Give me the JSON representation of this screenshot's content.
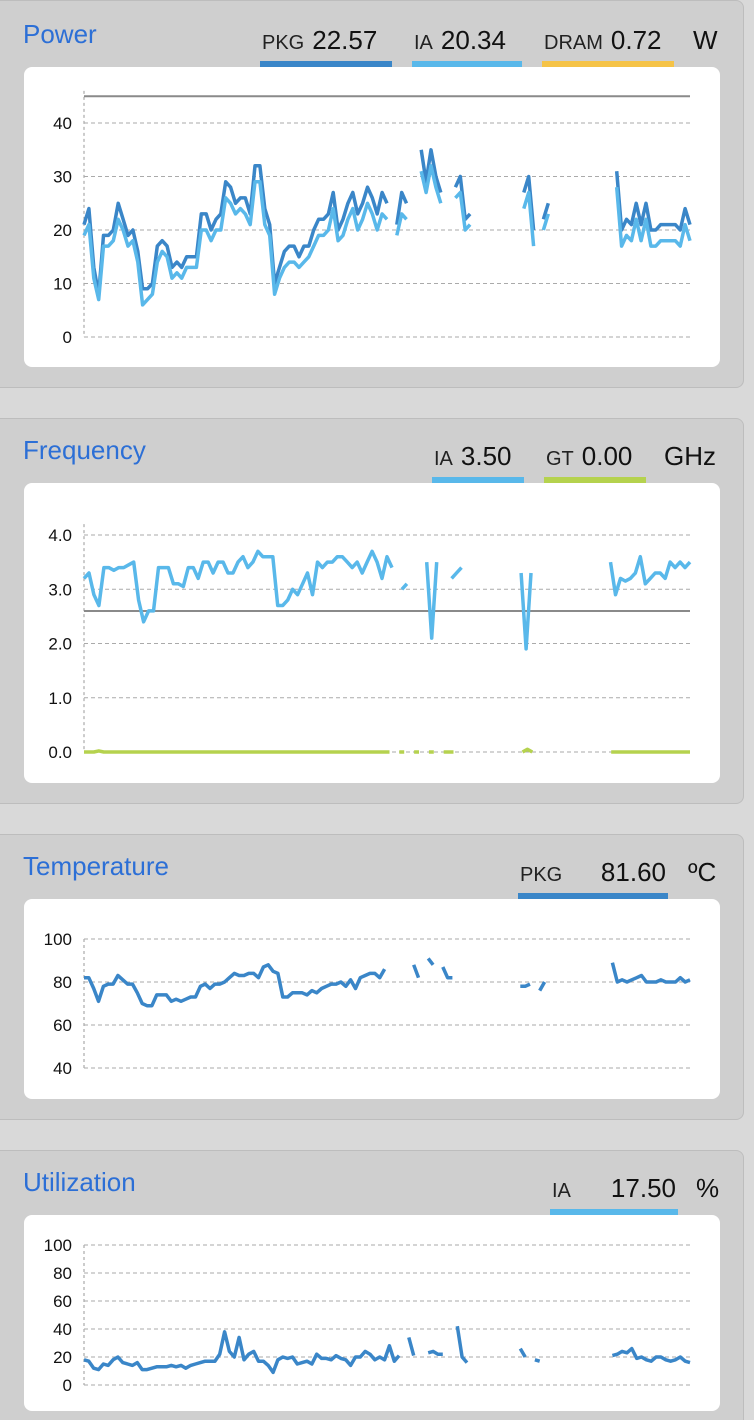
{
  "panels": {
    "power": {
      "title": "Power",
      "legend": [
        {
          "label": "PKG",
          "value": "22.57",
          "color": "#3a86c8"
        },
        {
          "label": "IA",
          "value": "20.34",
          "color": "#59b8ea"
        },
        {
          "label": "DRAM",
          "value": "0.72",
          "color": "#f5c347"
        }
      ],
      "unit": "W"
    },
    "frequency": {
      "title": "Frequency",
      "legend": [
        {
          "label": "IA",
          "value": "3.50",
          "color": "#59b8ea"
        },
        {
          "label": "GT",
          "value": "0.00",
          "color": "#b5d24e"
        }
      ],
      "unit": "GHz"
    },
    "temperature": {
      "title": "Temperature",
      "legend": [
        {
          "label": "PKG",
          "value": "81.60",
          "color": "#3a86c8"
        }
      ],
      "unit": "ºC"
    },
    "utilization": {
      "title": "Utilization",
      "legend": [
        {
          "label": "IA",
          "value": "17.50",
          "color": "#59b8ea"
        }
      ],
      "unit": "%"
    }
  },
  "chart_data": [
    {
      "type": "line",
      "id": "power",
      "yticks": [
        "0",
        "10",
        "20",
        "30",
        "40"
      ],
      "ylim": [
        0,
        46
      ],
      "reference_line": 45,
      "grid": true,
      "series": [
        {
          "name": "PKG",
          "color": "#3a86c8",
          "values": [
            21,
            24,
            13,
            8,
            19,
            19,
            20,
            25,
            22,
            19,
            20,
            16,
            9,
            9,
            10,
            17,
            18,
            17,
            13,
            14,
            13,
            15,
            15,
            15,
            23,
            23,
            20,
            22,
            23,
            29,
            28,
            25,
            26,
            26,
            23,
            32,
            32,
            24,
            21,
            10,
            13,
            16,
            17,
            17,
            15,
            17,
            17,
            20,
            22,
            22,
            23,
            27,
            20,
            22,
            25,
            27,
            23,
            25,
            28,
            26,
            23,
            27,
            25,
            null,
            21,
            27,
            25,
            null,
            null,
            35,
            29,
            35,
            30,
            27,
            null,
            null,
            28,
            30,
            22,
            23,
            null,
            null,
            null,
            null,
            null,
            null,
            null,
            null,
            null,
            null,
            27,
            30,
            20,
            null,
            22,
            25,
            null,
            null,
            null,
            null,
            null,
            null,
            null,
            null,
            null,
            null,
            null,
            null,
            null,
            31,
            20,
            22,
            21,
            25,
            21,
            25,
            20,
            20,
            21,
            21,
            21,
            21,
            20,
            24,
            21
          ]
        },
        {
          "name": "IA",
          "color": "#59b8ea",
          "values": [
            19,
            21,
            11,
            7,
            17,
            17,
            18,
            22,
            20,
            17,
            18,
            14,
            6,
            7,
            8,
            14,
            16,
            15,
            11,
            12,
            11,
            13,
            13,
            13,
            20,
            20,
            18,
            20,
            20,
            26,
            25,
            23,
            24,
            23,
            21,
            29,
            29,
            21,
            19,
            8,
            11,
            13,
            14,
            14,
            13,
            14,
            15,
            17,
            19,
            19,
            20,
            24,
            18,
            19,
            22,
            24,
            20,
            22,
            25,
            23,
            20,
            23,
            22,
            null,
            19,
            23,
            22,
            null,
            null,
            31,
            27,
            32,
            28,
            25,
            null,
            null,
            26,
            27,
            20,
            21,
            null,
            null,
            null,
            null,
            null,
            null,
            null,
            null,
            null,
            null,
            24,
            27,
            17,
            null,
            20,
            23,
            null,
            null,
            null,
            null,
            null,
            null,
            null,
            null,
            null,
            null,
            null,
            null,
            null,
            28,
            17,
            19,
            18,
            22,
            18,
            22,
            17,
            17,
            18,
            18,
            18,
            18,
            17,
            21,
            18
          ]
        },
        {
          "name": "DRAM",
          "color": "#f5c347",
          "values": []
        }
      ]
    },
    {
      "type": "line",
      "id": "frequency",
      "yticks": [
        "0.0",
        "1.0",
        "2.0",
        "3.0",
        "4.0"
      ],
      "ylim": [
        0,
        4.2
      ],
      "reference_line": 2.6,
      "grid": true,
      "series": [
        {
          "name": "IA",
          "color": "#59b8ea",
          "values": [
            3.2,
            3.3,
            2.9,
            2.7,
            3.4,
            3.4,
            3.35,
            3.4,
            3.4,
            3.45,
            3.5,
            2.8,
            2.4,
            2.6,
            2.6,
            3.4,
            3.4,
            3.4,
            3.1,
            3.1,
            3.05,
            3.4,
            3.4,
            3.2,
            3.5,
            3.5,
            3.3,
            3.5,
            3.5,
            3.3,
            3.3,
            3.5,
            3.6,
            3.4,
            3.5,
            3.7,
            3.6,
            3.6,
            3.6,
            2.7,
            2.7,
            2.8,
            3.0,
            2.9,
            3.1,
            3.3,
            2.9,
            3.5,
            3.4,
            3.5,
            3.5,
            3.6,
            3.6,
            3.5,
            3.4,
            3.5,
            3.3,
            3.5,
            3.7,
            3.5,
            3.2,
            3.6,
            3.4,
            null,
            3.0,
            3.1,
            null,
            null,
            null,
            3.5,
            2.1,
            3.5,
            null,
            null,
            3.2,
            3.3,
            3.4,
            null,
            null,
            null,
            null,
            null,
            null,
            null,
            null,
            null,
            null,
            null,
            3.3,
            1.9,
            3.3,
            null,
            3.35,
            null,
            null,
            null,
            null,
            null,
            null,
            null,
            null,
            null,
            null,
            null,
            null,
            null,
            3.5,
            2.9,
            3.2,
            3.15,
            3.2,
            3.3,
            3.6,
            3.1,
            3.2,
            3.3,
            3.3,
            3.2,
            3.5,
            3.4,
            3.5,
            3.4,
            3.5
          ]
        },
        {
          "name": "GT",
          "color": "#b5d24e",
          "values": [
            0,
            0,
            0,
            0.02,
            0,
            0,
            0,
            0,
            0,
            0,
            0,
            0,
            0,
            0,
            0,
            0,
            0,
            0,
            0,
            0,
            0,
            0,
            0,
            0,
            0,
            0,
            0,
            0,
            0,
            0,
            0,
            0,
            0,
            0,
            0,
            0,
            0,
            0,
            0,
            0,
            0,
            0,
            0,
            0,
            0,
            0,
            0,
            0,
            0,
            0,
            0,
            0,
            0,
            0,
            0,
            0,
            0,
            0,
            0,
            0,
            0,
            0,
            0,
            null,
            0,
            0,
            null,
            0,
            0,
            null,
            0,
            0,
            null,
            0,
            0,
            0,
            null,
            null,
            null,
            null,
            null,
            null,
            null,
            null,
            null,
            null,
            null,
            null,
            null,
            0,
            0.05,
            0,
            null,
            0,
            null,
            null,
            null,
            null,
            null,
            null,
            null,
            null,
            null,
            null,
            null,
            null,
            null,
            0,
            0,
            0,
            0,
            0,
            0,
            0,
            0,
            0,
            0,
            0,
            0,
            0,
            0,
            0,
            0,
            0
          ]
        }
      ]
    },
    {
      "type": "line",
      "id": "temperature",
      "yticks": [
        "40",
        "60",
        "80",
        "100"
      ],
      "ylim": [
        40,
        100
      ],
      "grid": true,
      "series": [
        {
          "name": "PKG",
          "color": "#3a86c8",
          "values": [
            82,
            82,
            77,
            71,
            78,
            79,
            79,
            83,
            81,
            79,
            79,
            75,
            70,
            69,
            69,
            74,
            74,
            74,
            71,
            72,
            71,
            72,
            73,
            73,
            78,
            79,
            77,
            79,
            79,
            80,
            82,
            84,
            83,
            83,
            84,
            84,
            82,
            87,
            88,
            85,
            84,
            73,
            73,
            75,
            75,
            75,
            74,
            76,
            75,
            77,
            78,
            79,
            79,
            80,
            78,
            81,
            77,
            82,
            83,
            84,
            84,
            82,
            86,
            null,
            84,
            null,
            null,
            null,
            88,
            82,
            null,
            91,
            88,
            null,
            87,
            82,
            82,
            null,
            null,
            null,
            null,
            null,
            null,
            null,
            null,
            null,
            null,
            null,
            null,
            null,
            78,
            78,
            79,
            null,
            76,
            80,
            null,
            null,
            null,
            null,
            null,
            null,
            null,
            null,
            null,
            null,
            null,
            null,
            null,
            89,
            80,
            81,
            80,
            81,
            82,
            83,
            80,
            80,
            80,
            81,
            80,
            80,
            80,
            82,
            80,
            81
          ]
        }
      ]
    },
    {
      "type": "line",
      "id": "utilization",
      "yticks": [
        "0",
        "20",
        "40",
        "60",
        "80",
        "100"
      ],
      "ylim": [
        0,
        100
      ],
      "grid": true,
      "series": [
        {
          "name": "IA",
          "color": "#3a86c8",
          "values": [
            18,
            17,
            12,
            11,
            15,
            14,
            18,
            20,
            16,
            15,
            14,
            16,
            11,
            11,
            12,
            13,
            13,
            13,
            14,
            13,
            14,
            12,
            14,
            15,
            16,
            17,
            17,
            17,
            22,
            38,
            24,
            20,
            34,
            18,
            22,
            24,
            17,
            17,
            14,
            9,
            18,
            20,
            19,
            20,
            15,
            16,
            17,
            15,
            22,
            19,
            19,
            18,
            21,
            19,
            18,
            14,
            20,
            20,
            24,
            22,
            18,
            20,
            18,
            28,
            17,
            21,
            null,
            34,
            21,
            null,
            null,
            23,
            24,
            22,
            22,
            null,
            null,
            42,
            20,
            16,
            null,
            null,
            null,
            null,
            null,
            null,
            null,
            null,
            null,
            null,
            26,
            20,
            null,
            18,
            17,
            null,
            null,
            null,
            null,
            null,
            null,
            null,
            null,
            null,
            null,
            null,
            null,
            null,
            null,
            21,
            22,
            24,
            23,
            26,
            19,
            20,
            18,
            17,
            20,
            20,
            18,
            17,
            18,
            20,
            17,
            16
          ]
        }
      ]
    }
  ]
}
